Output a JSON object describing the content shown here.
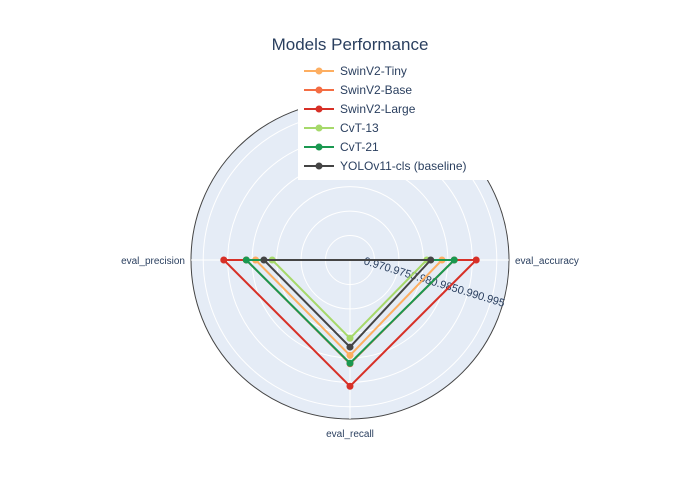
{
  "chart_data": {
    "type": "radar",
    "title": "Models Performance",
    "axes": [
      "eval_accuracy",
      "eval_recall",
      "eval_precision"
    ],
    "radial_ticks": [
      "0.97",
      "0.975",
      "0.98",
      "0.985",
      "0.99",
      "0.995"
    ],
    "radial_range": [
      0.965,
      0.9975
    ],
    "grid": true,
    "legend_position": "top",
    "series": [
      {
        "name": "SwinV2-Tiny",
        "color": "#fdae61",
        "values": {
          "eval_accuracy": 0.9838,
          "eval_recall": 0.9845,
          "eval_precision": 0.9843
        }
      },
      {
        "name": "SwinV2-Base",
        "color": "#f46d43",
        "values": {
          "eval_accuracy": 0.9863,
          "eval_recall": 0.9862,
          "eval_precision": 0.9862
        }
      },
      {
        "name": "SwinV2-Large",
        "color": "#d73027",
        "values": {
          "eval_accuracy": 0.9908,
          "eval_recall": 0.9908,
          "eval_precision": 0.9908
        }
      },
      {
        "name": "CvT-13",
        "color": "#a6d96a",
        "values": {
          "eval_accuracy": 0.9807,
          "eval_recall": 0.981,
          "eval_precision": 0.9809
        }
      },
      {
        "name": "CvT-21",
        "color": "#1a9850",
        "values": {
          "eval_accuracy": 0.9863,
          "eval_recall": 0.9861,
          "eval_precision": 0.9862
        }
      },
      {
        "name": "YOLOv11-cls (baseline)",
        "color": "#444444",
        "values": {
          "eval_accuracy": 0.9815,
          "eval_recall": 0.9828,
          "eval_precision": 0.9826
        }
      }
    ]
  }
}
